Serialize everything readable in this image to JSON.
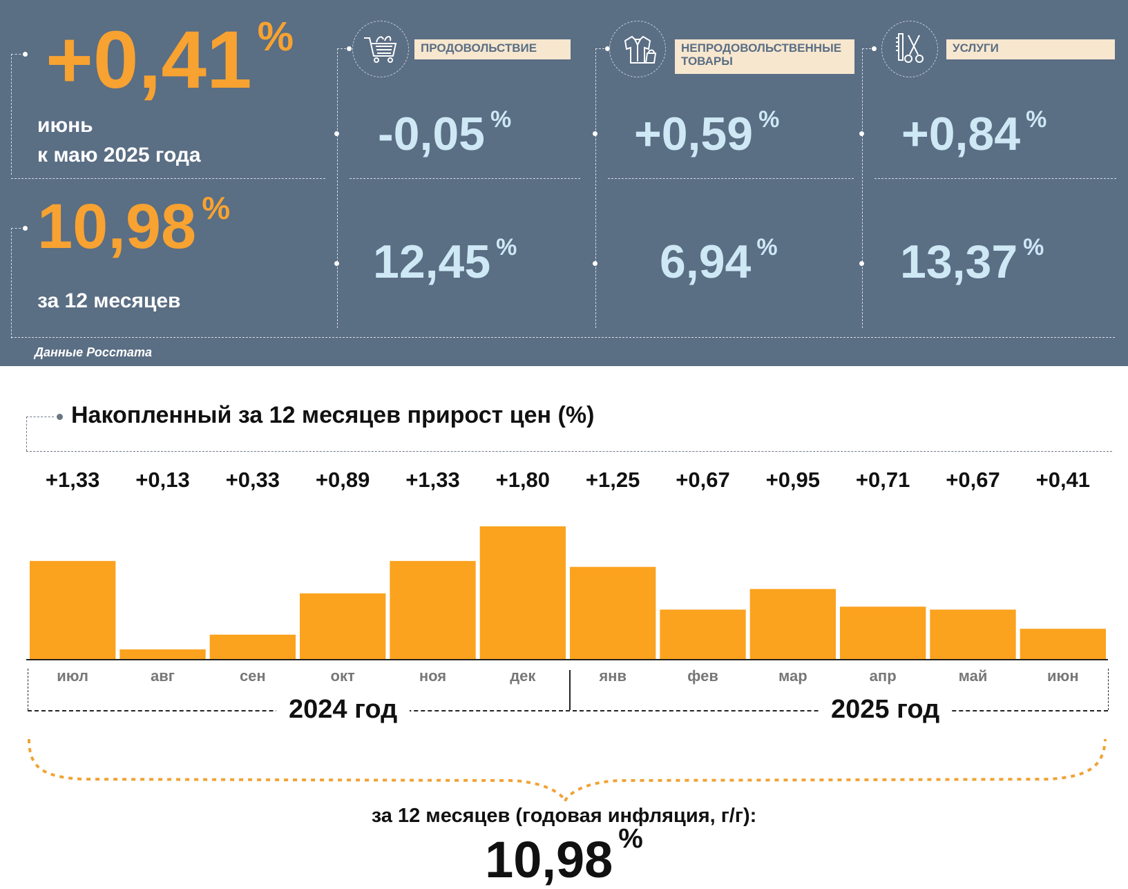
{
  "header": {
    "monthly": {
      "value": "+0,41",
      "unit": "%",
      "caption_line1": "июнь",
      "caption_line2": "к маю 2025 года"
    },
    "annual": {
      "value": "10,98",
      "unit": "%",
      "caption": "за 12 месяцев"
    },
    "source": "Данные Росстата",
    "categories": [
      {
        "label": "ПРОДОВОЛЬСТВИЕ",
        "icon": "shopping-cart-icon",
        "monthly": "-0,05",
        "annual": "12,45",
        "unit": "%"
      },
      {
        "label_line1": "НЕПРОДОВОЛЬСТВЕННЫЕ",
        "label_line2": "ТОВАРЫ",
        "icon": "clothes-icon",
        "monthly": "+0,59",
        "annual": "6,94",
        "unit": "%"
      },
      {
        "label": "УСЛУГИ",
        "icon": "barber-tools-icon",
        "monthly": "+0,84",
        "annual": "13,37",
        "unit": "%"
      }
    ]
  },
  "chart_data": {
    "type": "bar",
    "title": "Накопленный за 12 месяцев прирост цен (%)",
    "categories": [
      "июл",
      "авг",
      "сен",
      "окт",
      "ноя",
      "дек",
      "янв",
      "фев",
      "мар",
      "апр",
      "май",
      "июн"
    ],
    "values": [
      1.33,
      0.13,
      0.33,
      0.89,
      1.33,
      1.8,
      1.25,
      0.67,
      0.95,
      0.71,
      0.67,
      0.41
    ],
    "value_labels": [
      "+1,33",
      "+0,13",
      "+0,33",
      "+0,89",
      "+1,33",
      "+1,80",
      "+1,25",
      "+0,67",
      "+0,95",
      "+0,71",
      "+0,67",
      "+0,41"
    ],
    "groups": [
      "2024 год",
      "2025 год"
    ],
    "bar_color": "#fba21e",
    "ylim": [
      0,
      1.8
    ]
  },
  "footer": {
    "caption": "за 12 месяцев (годовая инфляция, г/г):",
    "value": "10,98",
    "unit": "%"
  },
  "colors": {
    "panel": "#5a6e84",
    "orange": "#f7a231",
    "light_blue": "#cfe8f5"
  }
}
